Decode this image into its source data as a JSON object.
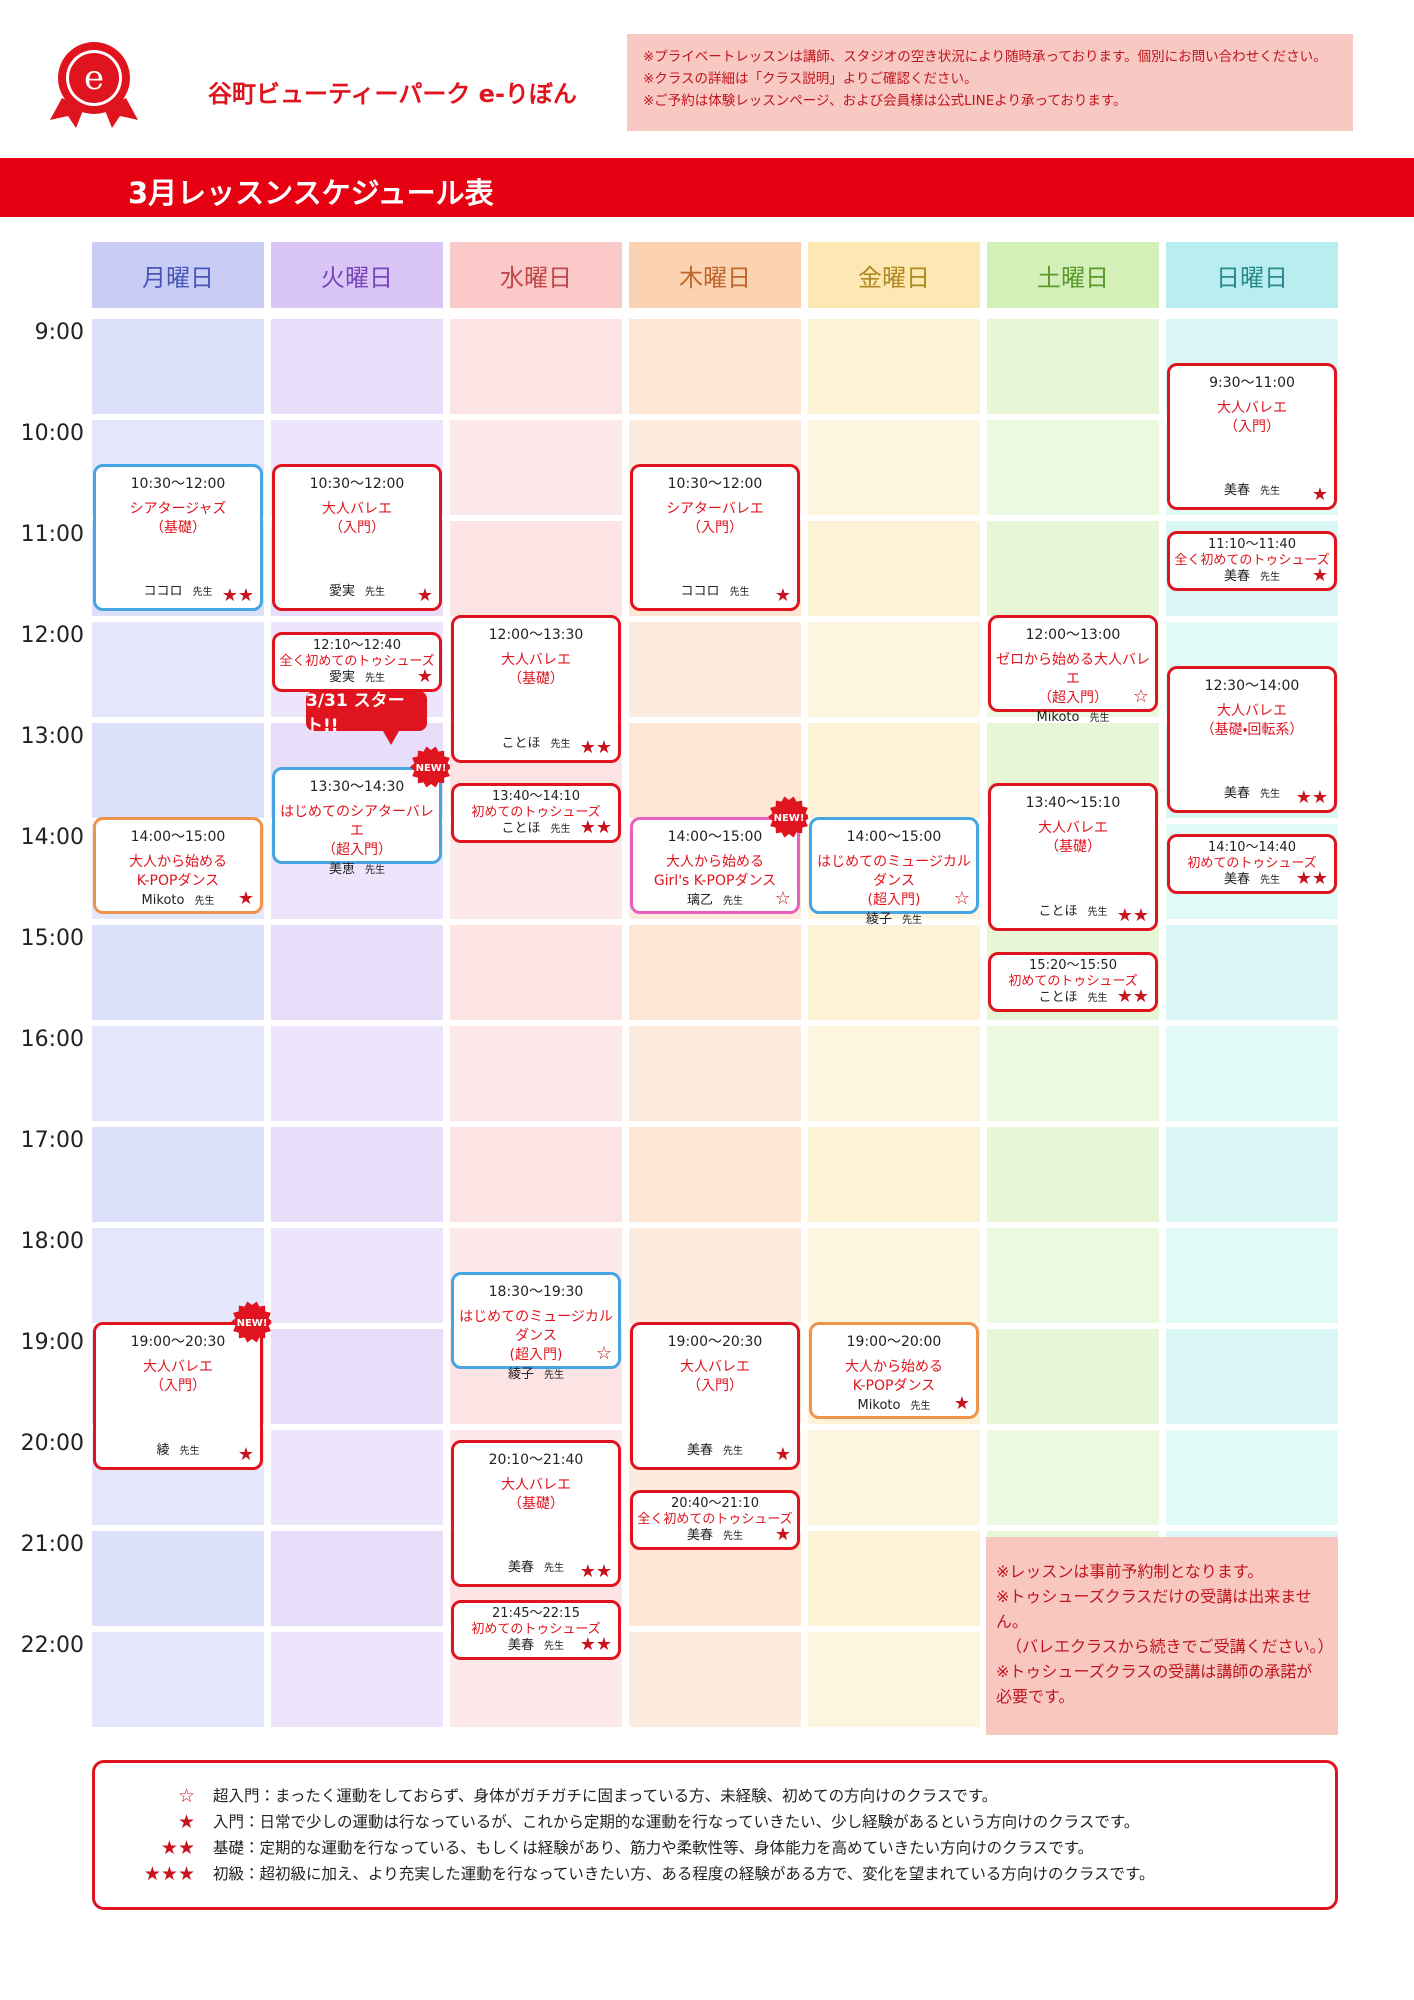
{
  "header": {
    "logo": "e",
    "title": "谷町ビューティーパーク e-りぼん",
    "notices": [
      "※プライベートレッスンは講師、スタジオの空き状況により随時承っております。個別にお問い合わせください。",
      "※クラスの詳細は「クラス説明」よりご確認ください。",
      "※ご予約は体験レッスンページ、および会員様は公式LINEより承っております。"
    ]
  },
  "schedule": {
    "title": "3月レッスンスケジュール表",
    "times": [
      "9:00",
      "10:00",
      "11:00",
      "12:00",
      "13:00",
      "14:00",
      "15:00",
      "16:00",
      "17:00",
      "18:00",
      "19:00",
      "20:00",
      "21:00",
      "22:00"
    ],
    "columns": [
      {
        "day": "月曜日",
        "head": "#c9cdf6",
        "ink": "#4a57b8",
        "body": "#dde0fa",
        "classes": [
          {
            "time": "10:30〜12:00",
            "name": [
              "シアタージャズ",
              "（基礎）"
            ],
            "teacher": "ココロ",
            "suffix": "先生",
            "stars": "★★",
            "color": "#45a6e3"
          },
          {
            "time": "14:00〜15:00",
            "name": [
              "大人から始める",
              "K-POPダンス"
            ],
            "teacher": "Mikoto",
            "suffix": "先生",
            "stars": "★",
            "color": "#f0944c"
          },
          {
            "time": "19:00〜20:30",
            "name": [
              "大人バレエ",
              "（入門）"
            ],
            "teacher": "綾",
            "suffix": "先生",
            "stars": "★",
            "color": "#e0141e",
            "badge": "NEW!"
          }
        ]
      },
      {
        "day": "火曜日",
        "head": "#d9c6f6",
        "ink": "#7a45b8",
        "body": "#e8defa",
        "classes": [
          {
            "time": "10:30〜12:00",
            "name": [
              "大人バレエ",
              "（入門）"
            ],
            "teacher": "愛実",
            "suffix": "先生",
            "stars": "★",
            "color": "#e0141e"
          },
          {
            "time": "12:10〜12:40",
            "name": [
              "全く初めてのトゥシューズ"
            ],
            "teacher": "愛実",
            "suffix": "先生",
            "stars": "★",
            "color": "#e0141e"
          },
          {
            "time": "13:30〜14:30",
            "name": [
              "はじめてのシアターバレエ",
              "（超入門）"
            ],
            "teacher": "美恵",
            "suffix": "先生",
            "stars": "",
            "color": "#45a6e3",
            "badge": "NEW!",
            "callout": "3/31 スタート!!"
          }
        ]
      },
      {
        "day": "水曜日",
        "head": "#fcc9c9",
        "ink": "#c04848",
        "body": "#fde4e4",
        "classes": [
          {
            "time": "12:00〜13:30",
            "name": [
              "大人バレエ",
              "（基礎）"
            ],
            "teacher": "ことほ",
            "suffix": "先生",
            "stars": "★★",
            "color": "#e0141e"
          },
          {
            "time": "13:40〜14:10",
            "name": [
              "初めてのトゥシューズ"
            ],
            "teacher": "ことほ",
            "suffix": "先生",
            "stars": "★★",
            "color": "#e0141e"
          },
          {
            "time": "18:30〜19:30",
            "name": [
              "はじめてのミュージカルダンス",
              "(超入門)"
            ],
            "teacher": "綾子",
            "suffix": "先生",
            "stars": "☆",
            "color": "#45a6e3"
          },
          {
            "time": "20:10〜21:40",
            "name": [
              "大人バレエ",
              "（基礎）"
            ],
            "teacher": "美春",
            "suffix": "先生",
            "stars": "★★",
            "color": "#e0141e"
          },
          {
            "time": "21:45〜22:15",
            "name": [
              "初めてのトゥシューズ"
            ],
            "teacher": "美春",
            "suffix": "先生",
            "stars": "★★",
            "color": "#e0141e"
          }
        ]
      },
      {
        "day": "木曜日",
        "head": "#fcd3b2",
        "ink": "#c0662a",
        "body": "#fde6d4",
        "classes": [
          {
            "time": "10:30〜12:00",
            "name": [
              "シアターバレエ",
              "（入門）"
            ],
            "teacher": "ココロ",
            "suffix": "先生",
            "stars": "★",
            "color": "#e0141e"
          },
          {
            "time": "14:00〜15:00",
            "name": [
              "大人から始める",
              "Girl's K-POPダンス"
            ],
            "teacher": "璃乙",
            "suffix": "先生",
            "stars": "☆",
            "color": "#e860c0",
            "badge": "NEW!"
          },
          {
            "time": "19:00〜20:30",
            "name": [
              "大人バレエ",
              "（入門）"
            ],
            "teacher": "美春",
            "suffix": "先生",
            "stars": "★",
            "color": "#e0141e"
          },
          {
            "time": "20:40〜21:10",
            "name": [
              "全く初めてのトゥシューズ"
            ],
            "teacher": "美春",
            "suffix": "先生",
            "stars": "★",
            "color": "#e0141e"
          }
        ]
      },
      {
        "day": "金曜日",
        "head": "#fde7b2",
        "ink": "#b08a20",
        "body": "#fdf2d6",
        "classes": [
          {
            "time": "14:00〜15:00",
            "name": [
              "はじめてのミュージカルダンス",
              "(超入門)"
            ],
            "teacher": "綾子",
            "suffix": "先生",
            "stars": "☆",
            "color": "#45a6e3"
          },
          {
            "time": "19:00〜20:00",
            "name": [
              "大人から始める",
              "K-POPダンス"
            ],
            "teacher": "Mikoto",
            "suffix": "先生",
            "stars": "★",
            "color": "#f0944c"
          }
        ]
      },
      {
        "day": "土曜日",
        "head": "#d3f0b9",
        "ink": "#5a9a2a",
        "body": "#e8f6d8",
        "classes": [
          {
            "time": "12:00〜13:00",
            "name": [
              "ゼロから始める大人バレエ",
              "（超入門）"
            ],
            "teacher": "Mikoto",
            "suffix": "先生",
            "stars": "☆",
            "color": "#e0141e"
          },
          {
            "time": "13:40〜15:10",
            "name": [
              "大人バレエ",
              "（基礎）"
            ],
            "teacher": "ことほ",
            "suffix": "先生",
            "stars": "★★",
            "color": "#e0141e"
          },
          {
            "time": "15:20〜15:50",
            "name": [
              "初めてのトゥシューズ"
            ],
            "teacher": "ことほ",
            "suffix": "先生",
            "stars": "★★",
            "color": "#e0141e"
          }
        ]
      },
      {
        "day": "日曜日",
        "head": "#b9eef0",
        "ink": "#2a8a90",
        "body": "#daf7f5",
        "classes": [
          {
            "time": "9:30〜11:00",
            "name": [
              "大人バレエ",
              "（入門）"
            ],
            "teacher": "美春",
            "suffix": "先生",
            "stars": "★",
            "color": "#e0141e"
          },
          {
            "time": "11:10〜11:40",
            "name": [
              "全く初めてのトゥシューズ"
            ],
            "teacher": "美春",
            "suffix": "先生",
            "stars": "★",
            "color": "#e0141e"
          },
          {
            "time": "12:30〜14:00",
            "name": [
              "大人バレエ",
              "（基礎・回転系）"
            ],
            "teacher": "美春",
            "suffix": "先生",
            "stars": "★★",
            "color": "#e0141e"
          },
          {
            "time": "14:10〜14:40",
            "name": [
              "初めてのトゥシューズ"
            ],
            "teacher": "美春",
            "suffix": "先生",
            "stars": "★★",
            "color": "#e0141e"
          }
        ]
      }
    ],
    "notes": [
      "※レッスンは事前予約制となります。",
      "※トゥシューズクラスだけの受講は出来ません。",
      "（バレエクラスから続きでご受講ください。）",
      "※トゥシューズクラスの受講は講師の承諾が必要です。"
    ]
  },
  "legend": [
    {
      "symbol": "☆",
      "text": "超入門：まったく運動をしておらず、身体がガチガチに固まっている方、未経験、初めての方向けのクラスです。"
    },
    {
      "symbol": "★",
      "text": "入門：日常で少しの運動は行なっているが、これから定期的な運動を行なっていきたい、少し経験があるという方向けのクラスです。"
    },
    {
      "symbol": "★★",
      "text": "基礎：定期的な運動を行なっている、もしくは経験があり、筋力や柔軟性等、身体能力を高めていきたい方向けのクラスです。"
    },
    {
      "symbol": "★★★",
      "text": "初級：超初級に加え、より充実した運動を行なっていきたい方、ある程度の経験がある方で、変化を望まれている方向けのクラスです。"
    }
  ]
}
